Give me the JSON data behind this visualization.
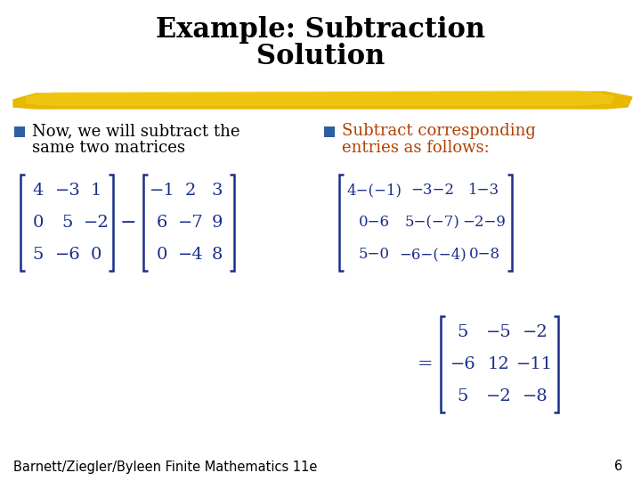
{
  "title_line1": "Example: Subtraction",
  "title_line2": "Solution",
  "title_fontsize": 22,
  "background_color": "#ffffff",
  "bullet_color": "#2e5fa3",
  "bullet1_text_line1": "Now, we will subtract the",
  "bullet1_text_line2": "same two matrices",
  "bullet2_text_line1": "Subtract corresponding",
  "bullet2_text_line2": "entries as follows:",
  "bullet2_color": "#b34000",
  "footer_text": "Barnett/Ziegler/Byleen Finite Mathematics 11e",
  "page_number": "6",
  "matrix_color": "#1a2e8a",
  "highlight_color": "#e8b800",
  "matrix1": [
    [
      "4",
      "−3",
      "1"
    ],
    [
      "0",
      "5",
      "−2"
    ],
    [
      "5",
      "−6",
      "0"
    ]
  ],
  "matrix2": [
    "−1",
    "2",
    "3",
    "6",
    "−7",
    "9",
    "0",
    "−4",
    "8"
  ],
  "matrix2_rows": [
    [
      "−1",
      "2",
      "3"
    ],
    [
      "6",
      "−7",
      "9"
    ],
    [
      "0",
      "−4",
      "8"
    ]
  ],
  "expand_rows": [
    [
      "4−(−1)",
      "−3−2",
      "1−3"
    ],
    [
      "0−6",
      "5−(−7)",
      "−2−9"
    ],
    [
      "5−0",
      "−6−(−4)",
      "0−8"
    ]
  ],
  "result_matrix": [
    [
      "5",
      "−5",
      "−2"
    ],
    [
      "−6",
      "12",
      "−11"
    ],
    [
      "5",
      "−2",
      "−8"
    ]
  ]
}
